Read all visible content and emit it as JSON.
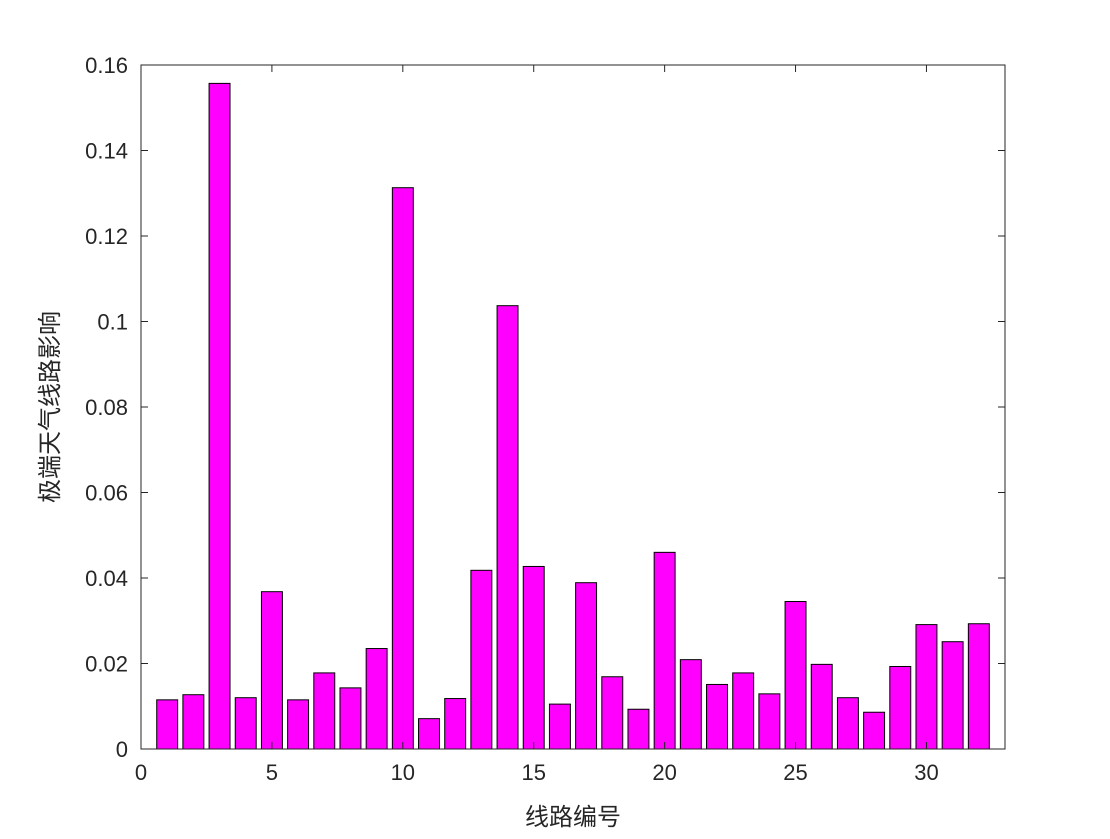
{
  "chart_data": {
    "type": "bar",
    "title": "",
    "xlabel": "线路编号",
    "ylabel": "极端天气线路影响",
    "xlim": [
      0,
      33
    ],
    "ylim": [
      0,
      0.16
    ],
    "xticks": [
      0,
      5,
      10,
      15,
      20,
      25,
      30
    ],
    "xtick_labels": [
      "0",
      "5",
      "10",
      "15",
      "20",
      "25",
      "30"
    ],
    "yticks": [
      0,
      0.02,
      0.04,
      0.06,
      0.08,
      0.1,
      0.12,
      0.14,
      0.16
    ],
    "ytick_labels": [
      "0",
      "0.02",
      "0.04",
      "0.06",
      "0.08",
      "0.1",
      "0.12",
      "0.14",
      "0.16"
    ],
    "bar_color": "#ff00ff",
    "edge_color": "#000000",
    "grid": false,
    "x": [
      1,
      2,
      3,
      4,
      5,
      6,
      7,
      8,
      9,
      10,
      11,
      12,
      13,
      14,
      15,
      16,
      17,
      18,
      19,
      20,
      21,
      22,
      23,
      24,
      25,
      26,
      27,
      28,
      29,
      30,
      31,
      32
    ],
    "values": [
      0.0115,
      0.0127,
      0.1557,
      0.012,
      0.0368,
      0.0115,
      0.0178,
      0.0143,
      0.0235,
      0.1313,
      0.0071,
      0.0118,
      0.0418,
      0.1037,
      0.0427,
      0.0105,
      0.0389,
      0.0169,
      0.0093,
      0.046,
      0.0209,
      0.0151,
      0.0178,
      0.0129,
      0.0345,
      0.0198,
      0.012,
      0.0086,
      0.0193,
      0.0291,
      0.0251,
      0.0293
    ]
  }
}
